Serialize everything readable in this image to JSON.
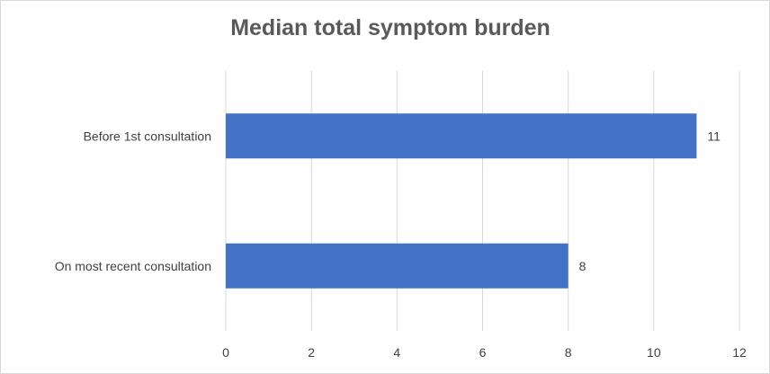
{
  "chart_data": {
    "type": "bar",
    "orientation": "horizontal",
    "title": "Median total symptom burden",
    "xlabel": "",
    "ylabel": "",
    "categories": [
      "Before 1st consultation",
      "On most recent consultation"
    ],
    "values": [
      11,
      8
    ],
    "data_labels": [
      "11",
      "8"
    ],
    "xlim": [
      0,
      12
    ],
    "x_ticks": [
      0,
      2,
      4,
      6,
      8,
      10,
      12
    ],
    "grid": true,
    "legend": "none",
    "bar_color": "#4472c4",
    "grid_color": "#d9d9d9"
  }
}
